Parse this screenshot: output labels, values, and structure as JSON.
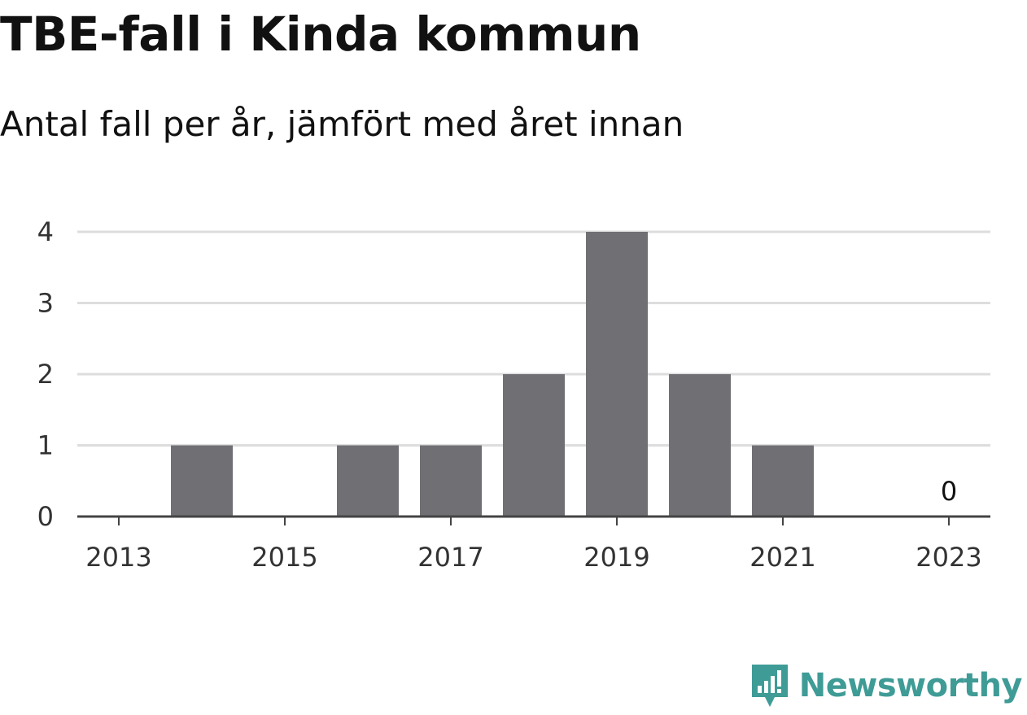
{
  "header": {
    "title": "TBE-fall i Kinda kommun",
    "subtitle": "Antal fall per år, jämfört med året innan"
  },
  "chart_data": {
    "type": "bar",
    "categories": [
      "2013",
      "2014",
      "2015",
      "2016",
      "2017",
      "2018",
      "2019",
      "2020",
      "2021",
      "2022",
      "2023"
    ],
    "values": [
      0,
      1,
      0,
      1,
      1,
      2,
      4,
      2,
      1,
      0,
      0
    ],
    "x_tick_labels": [
      "2013",
      "2015",
      "2017",
      "2019",
      "2021",
      "2023"
    ],
    "y_ticks": [
      0,
      1,
      2,
      3,
      4
    ],
    "ylim": [
      0,
      4
    ],
    "data_labels": [
      {
        "category": "2023",
        "text": "0"
      }
    ],
    "xlabel": "",
    "ylabel": "",
    "grid": true,
    "legend": "none",
    "colors": {
      "bar": "#706f74",
      "grid": "#dddddd",
      "axis": "#444444"
    }
  },
  "brand": {
    "name": "Newsworthy",
    "icon": "newsworthy-logo-icon",
    "color": "#3f9b96"
  }
}
